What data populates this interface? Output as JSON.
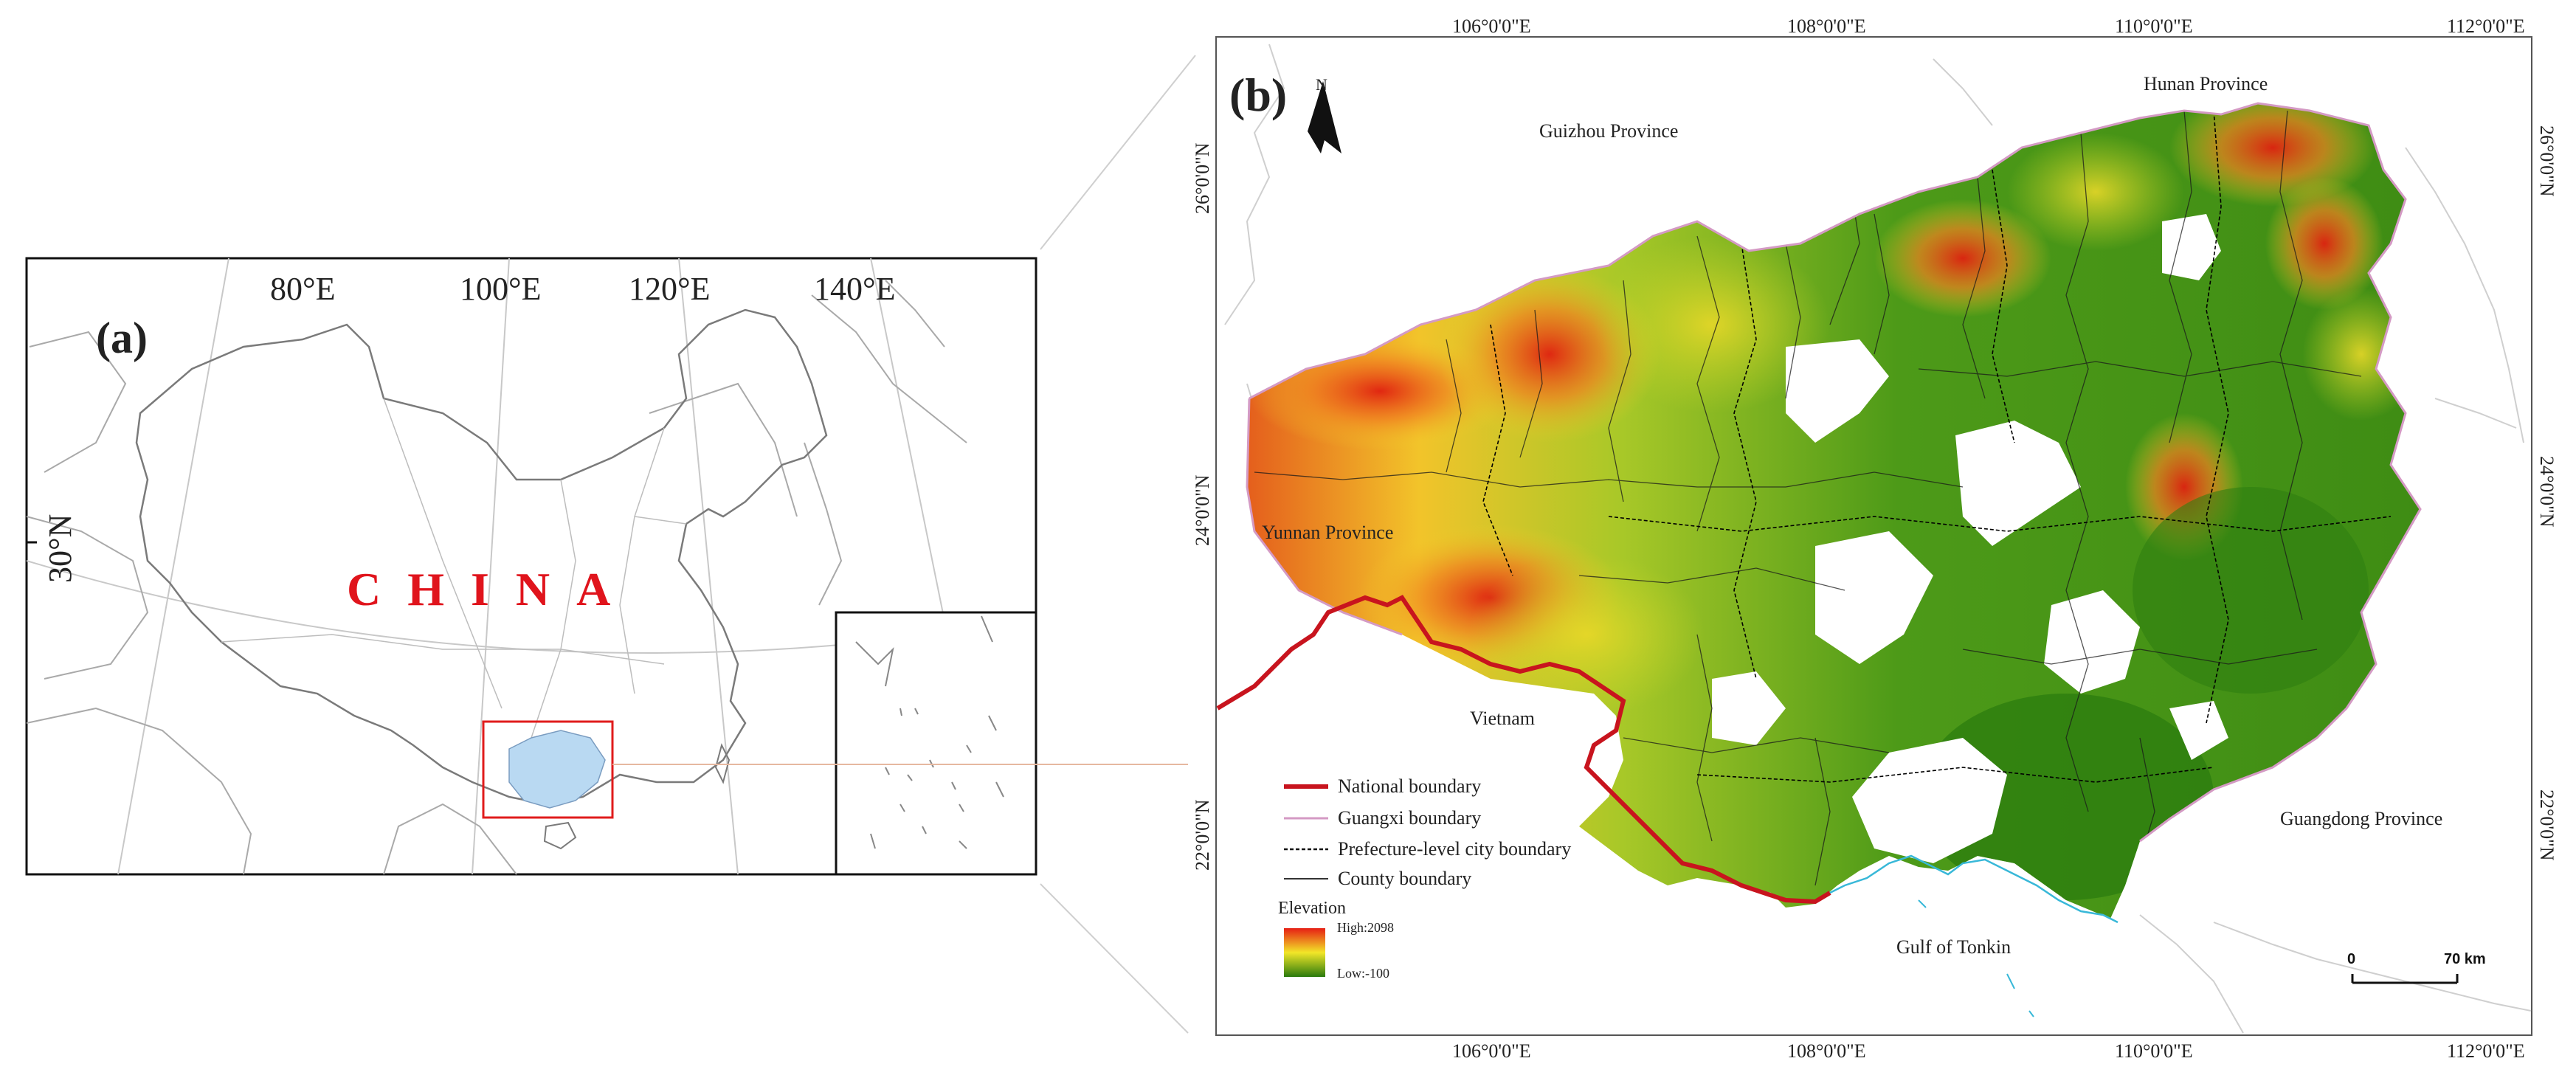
{
  "panel_a": {
    "label": "(a)",
    "country": "CHINA",
    "lon_labels": [
      "80°E",
      "100°E",
      "120°E",
      "140°E"
    ],
    "lat_label": "30°N"
  },
  "panel_b": {
    "label": "(b)",
    "north": "N",
    "top_lon": [
      "106°0'0\"E",
      "108°0'0\"E",
      "110°0'0\"E",
      "112°0'0\"E"
    ],
    "bottom_lon": [
      "106°0'0\"E",
      "108°0'0\"E",
      "110°0'0\"E",
      "112°0'0\"E"
    ],
    "left_lat": [
      "26°0'0\"N",
      "24°0'0\"N",
      "22°0'0\"N"
    ],
    "right_lat": [
      "26°0'0\"N",
      "24°0'0\"N",
      "22°0'0\"N"
    ],
    "places": {
      "guizhou": "Guizhou Province",
      "hunan": "Hunan Province",
      "yunnan": "Yunnan Province",
      "vietnam": "Vietnam",
      "guangdong": "Guangdong Province",
      "tonkin": "Gulf of Tonkin"
    },
    "legend": {
      "national": "National boundary",
      "guangxi": "Guangxi boundary",
      "prefecture": "Prefecture-level city boundary",
      "county": "County boundary",
      "elevation": "Elevation",
      "high": "High:2098",
      "low": "Low:-100"
    },
    "scale": {
      "zero": "0",
      "dist": "70 km"
    },
    "colors": {
      "national": "#c8141e",
      "guangxi": "#d49ac4",
      "high": "#e61e14",
      "mid": "#f2e628",
      "low": "#2a7a0e",
      "coast": "#38b8d8"
    }
  }
}
